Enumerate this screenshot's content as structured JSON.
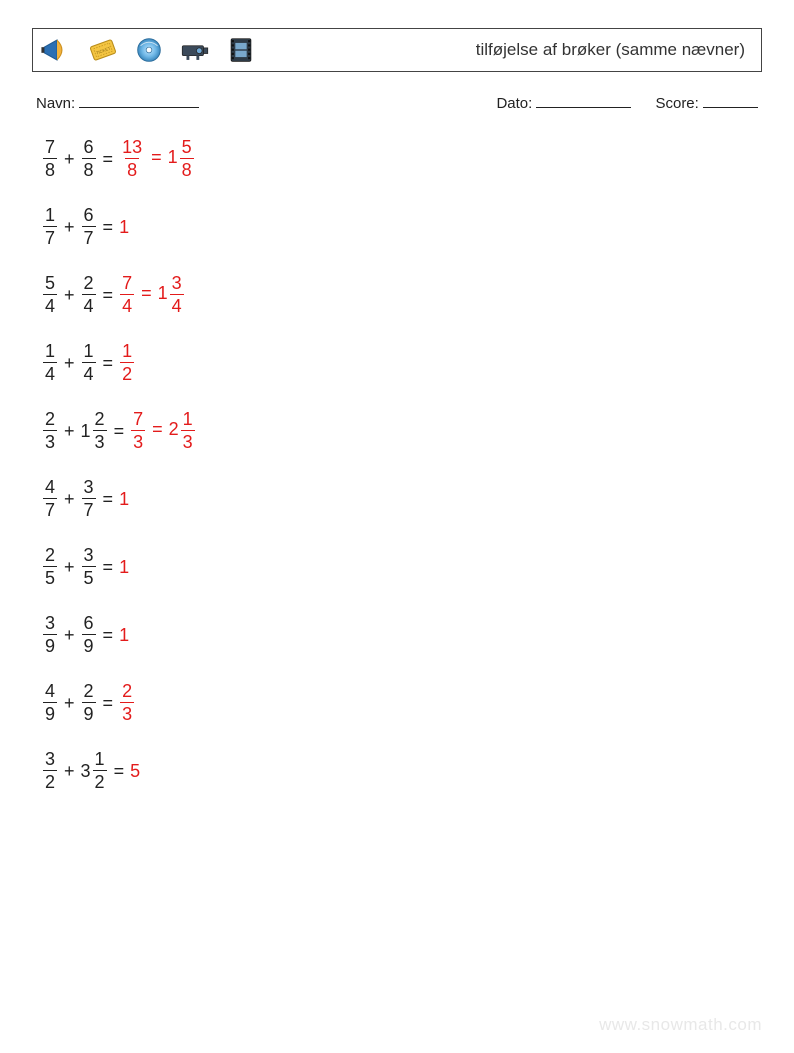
{
  "header": {
    "title": "tilføjelse af brøker (samme nævner)",
    "icons": [
      "megaphone-icon",
      "ticket-icon",
      "cd-icon",
      "projector-icon",
      "film-icon"
    ]
  },
  "meta": {
    "name_label": "Navn:",
    "date_label": "Dato:",
    "score_label": "Score:"
  },
  "colors": {
    "text": "#222222",
    "answer": "#e31b1b",
    "border": "#444444",
    "background": "#ffffff",
    "watermark": "#e8e8e8"
  },
  "typography": {
    "header_title_fontsize": 17,
    "meta_fontsize": 15,
    "problem_fontsize": 18,
    "watermark_fontsize": 17
  },
  "problems": [
    {
      "lhs": [
        {
          "type": "frac",
          "n": "7",
          "d": "8"
        },
        {
          "type": "op",
          "v": "+"
        },
        {
          "type": "frac",
          "n": "6",
          "d": "8"
        }
      ],
      "rhs": [
        {
          "type": "frac",
          "n": "13",
          "d": "8"
        },
        {
          "type": "op",
          "v": "="
        },
        {
          "type": "mixed",
          "w": "1",
          "n": "5",
          "d": "8"
        }
      ]
    },
    {
      "lhs": [
        {
          "type": "frac",
          "n": "1",
          "d": "7"
        },
        {
          "type": "op",
          "v": "+"
        },
        {
          "type": "frac",
          "n": "6",
          "d": "7"
        }
      ],
      "rhs": [
        {
          "type": "int",
          "v": "1"
        }
      ]
    },
    {
      "lhs": [
        {
          "type": "frac",
          "n": "5",
          "d": "4"
        },
        {
          "type": "op",
          "v": "+"
        },
        {
          "type": "frac",
          "n": "2",
          "d": "4"
        }
      ],
      "rhs": [
        {
          "type": "frac",
          "n": "7",
          "d": "4"
        },
        {
          "type": "op",
          "v": "="
        },
        {
          "type": "mixed",
          "w": "1",
          "n": "3",
          "d": "4"
        }
      ]
    },
    {
      "lhs": [
        {
          "type": "frac",
          "n": "1",
          "d": "4"
        },
        {
          "type": "op",
          "v": "+"
        },
        {
          "type": "frac",
          "n": "1",
          "d": "4"
        }
      ],
      "rhs": [
        {
          "type": "frac",
          "n": "1",
          "d": "2"
        }
      ]
    },
    {
      "lhs": [
        {
          "type": "frac",
          "n": "2",
          "d": "3"
        },
        {
          "type": "op",
          "v": "+"
        },
        {
          "type": "mixed",
          "w": "1",
          "n": "2",
          "d": "3"
        }
      ],
      "rhs": [
        {
          "type": "frac",
          "n": "7",
          "d": "3"
        },
        {
          "type": "op",
          "v": "="
        },
        {
          "type": "mixed",
          "w": "2",
          "n": "1",
          "d": "3"
        }
      ]
    },
    {
      "lhs": [
        {
          "type": "frac",
          "n": "4",
          "d": "7"
        },
        {
          "type": "op",
          "v": "+"
        },
        {
          "type": "frac",
          "n": "3",
          "d": "7"
        }
      ],
      "rhs": [
        {
          "type": "int",
          "v": "1"
        }
      ]
    },
    {
      "lhs": [
        {
          "type": "frac",
          "n": "2",
          "d": "5"
        },
        {
          "type": "op",
          "v": "+"
        },
        {
          "type": "frac",
          "n": "3",
          "d": "5"
        }
      ],
      "rhs": [
        {
          "type": "int",
          "v": "1"
        }
      ]
    },
    {
      "lhs": [
        {
          "type": "frac",
          "n": "3",
          "d": "9"
        },
        {
          "type": "op",
          "v": "+"
        },
        {
          "type": "frac",
          "n": "6",
          "d": "9"
        }
      ],
      "rhs": [
        {
          "type": "int",
          "v": "1"
        }
      ]
    },
    {
      "lhs": [
        {
          "type": "frac",
          "n": "4",
          "d": "9"
        },
        {
          "type": "op",
          "v": "+"
        },
        {
          "type": "frac",
          "n": "2",
          "d": "9"
        }
      ],
      "rhs": [
        {
          "type": "frac",
          "n": "2",
          "d": "3"
        }
      ]
    },
    {
      "lhs": [
        {
          "type": "frac",
          "n": "3",
          "d": "2"
        },
        {
          "type": "op",
          "v": "+"
        },
        {
          "type": "mixed",
          "w": "3",
          "n": "1",
          "d": "2"
        }
      ],
      "rhs": [
        {
          "type": "int",
          "v": "5"
        }
      ]
    }
  ],
  "watermark": "www.snowmath.com"
}
